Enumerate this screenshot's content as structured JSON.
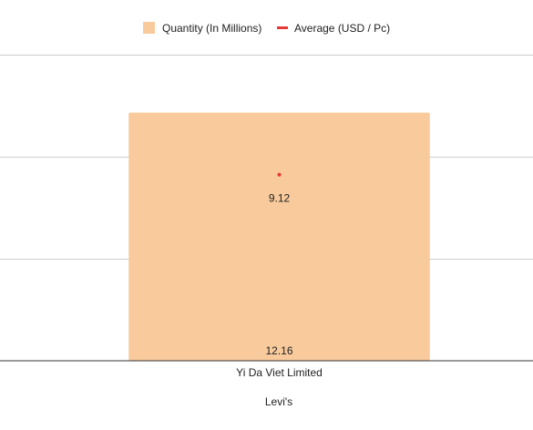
{
  "chart_data": {
    "type": "bar",
    "title": "",
    "xlabel": "Levi's",
    "ylabel": "",
    "categories": [
      "Yi Da Viet Limited"
    ],
    "series": [
      {
        "name": "Quantity (In Millions)",
        "kind": "bar",
        "color": "#f9cb9c",
        "values": [
          12.16
        ]
      },
      {
        "name": "Average (USD / Pc)",
        "kind": "line",
        "color": "#e53935",
        "values": [
          9.12
        ]
      }
    ],
    "ylim": [
      0,
      15
    ],
    "y_tick_values": [
      0,
      5,
      10,
      15
    ],
    "y_tick_labels_shown": false,
    "grid": true,
    "legend_position": "top"
  }
}
